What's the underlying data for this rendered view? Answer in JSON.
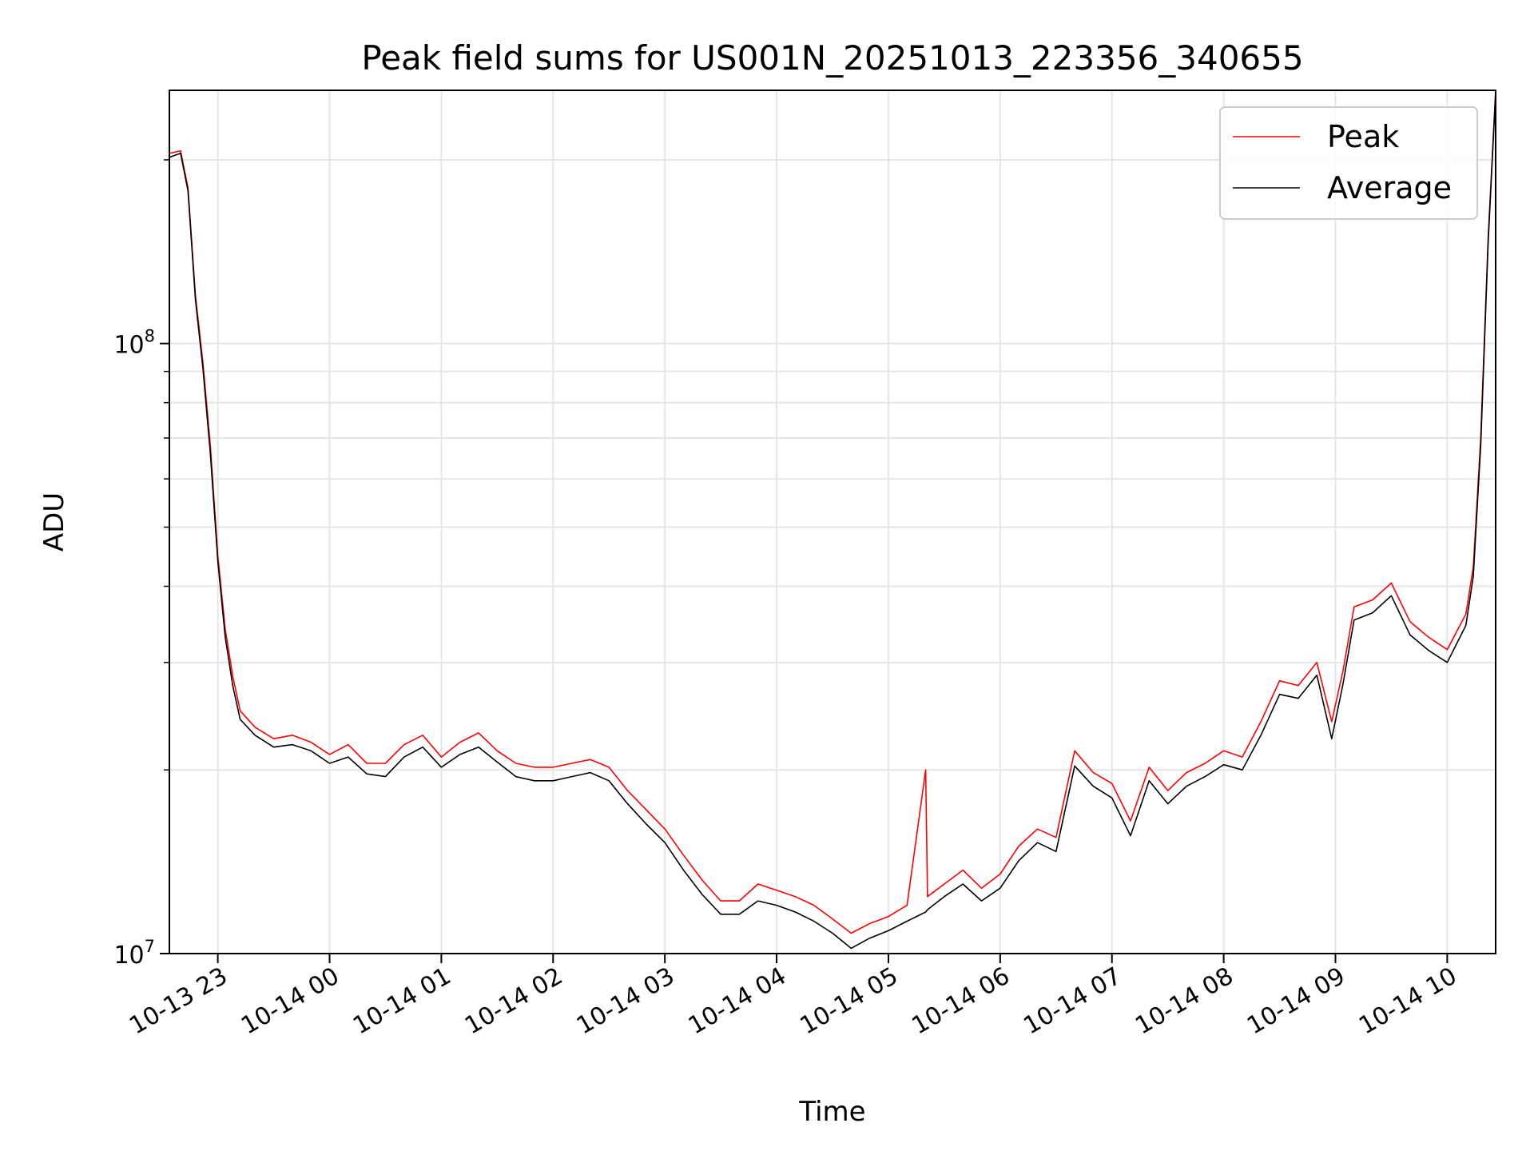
{
  "chart_data": {
    "type": "line",
    "title": "Peak field sums for US001N_20251013_223356_340655",
    "xlabel": "Time",
    "ylabel": "ADU",
    "yscale": "log",
    "ylim": [
      10000000.0,
      260000000.0
    ],
    "xlim": [
      "2025-10-13T22:34:00",
      "2025-10-14T10:26:00"
    ],
    "x_ticks": [
      "10-13 23",
      "10-14 00",
      "10-14 01",
      "10-14 02",
      "10-14 03",
      "10-14 04",
      "10-14 05",
      "10-14 06",
      "10-14 07",
      "10-14 08",
      "10-14 09",
      "10-14 10"
    ],
    "y_major_ticks": [
      {
        "value": 10000000.0,
        "base": "10",
        "exp": "7"
      },
      {
        "value": 100000000.0,
        "base": "10",
        "exp": "8"
      }
    ],
    "grid": true,
    "legend_position": "upper-right",
    "series": [
      {
        "name": "Peak",
        "color": "#ff0000",
        "points": [
          [
            "2025-10-13T22:34:00",
            205000000.0
          ],
          [
            "2025-10-13T22:40:00",
            207000000.0
          ],
          [
            "2025-10-13T22:44:00",
            180000000.0
          ],
          [
            "2025-10-13T22:48:00",
            120000000.0
          ],
          [
            "2025-10-13T22:52:00",
            93000000.0
          ],
          [
            "2025-10-13T22:56:00",
            68000000.0
          ],
          [
            "2025-10-13T23:00:00",
            45000000.0
          ],
          [
            "2025-10-13T23:04:00",
            34000000.0
          ],
          [
            "2025-10-13T23:08:00",
            28500000.0
          ],
          [
            "2025-10-13T23:12:00",
            25000000.0
          ],
          [
            "2025-10-13T23:20:00",
            23500000.0
          ],
          [
            "2025-10-13T23:30:00",
            22500000.0
          ],
          [
            "2025-10-13T23:40:00",
            22800000.0
          ],
          [
            "2025-10-13T23:50:00",
            22200000.0
          ],
          [
            "2025-10-14T00:00:00",
            21200000.0
          ],
          [
            "2025-10-14T00:10:00",
            22000000.0
          ],
          [
            "2025-10-14T00:20:00",
            20500000.0
          ],
          [
            "2025-10-14T00:30:00",
            20500000.0
          ],
          [
            "2025-10-14T00:40:00",
            22000000.0
          ],
          [
            "2025-10-14T00:50:00",
            22800000.0
          ],
          [
            "2025-10-14T01:00:00",
            21000000.0
          ],
          [
            "2025-10-14T01:10:00",
            22200000.0
          ],
          [
            "2025-10-14T01:20:00",
            23000000.0
          ],
          [
            "2025-10-14T01:30:00",
            21500000.0
          ],
          [
            "2025-10-14T01:40:00",
            20500000.0
          ],
          [
            "2025-10-14T01:50:00",
            20200000.0
          ],
          [
            "2025-10-14T02:00:00",
            20200000.0
          ],
          [
            "2025-10-14T02:10:00",
            20500000.0
          ],
          [
            "2025-10-14T02:20:00",
            20800000.0
          ],
          [
            "2025-10-14T02:30:00",
            20200000.0
          ],
          [
            "2025-10-14T02:40:00",
            18500000.0
          ],
          [
            "2025-10-14T02:50:00",
            17200000.0
          ],
          [
            "2025-10-14T03:00:00",
            16000000.0
          ],
          [
            "2025-10-14T03:10:00",
            14500000.0
          ],
          [
            "2025-10-14T03:20:00",
            13200000.0
          ],
          [
            "2025-10-14T03:30:00",
            12200000.0
          ],
          [
            "2025-10-14T03:40:00",
            12200000.0
          ],
          [
            "2025-10-14T03:50:00",
            13000000.0
          ],
          [
            "2025-10-14T04:00:00",
            12700000.0
          ],
          [
            "2025-10-14T04:10:00",
            12400000.0
          ],
          [
            "2025-10-14T04:20:00",
            12000000.0
          ],
          [
            "2025-10-14T04:30:00",
            11400000.0
          ],
          [
            "2025-10-14T04:40:00",
            10800000.0
          ],
          [
            "2025-10-14T04:50:00",
            11200000.0
          ],
          [
            "2025-10-14T05:00:00",
            11500000.0
          ],
          [
            "2025-10-14T05:10:00",
            12000000.0
          ],
          [
            "2025-10-14T05:20:00",
            20000000.0
          ],
          [
            "2025-10-14T05:21:00",
            12400000.0
          ],
          [
            "2025-10-14T05:30:00",
            13000000.0
          ],
          [
            "2025-10-14T05:40:00",
            13700000.0
          ],
          [
            "2025-10-14T05:50:00",
            12800000.0
          ],
          [
            "2025-10-14T06:00:00",
            13500000.0
          ],
          [
            "2025-10-14T06:10:00",
            15000000.0
          ],
          [
            "2025-10-14T06:20:00",
            16000000.0
          ],
          [
            "2025-10-14T06:30:00",
            15500000.0
          ],
          [
            "2025-10-14T06:40:00",
            21500000.0
          ],
          [
            "2025-10-14T06:50:00",
            19800000.0
          ],
          [
            "2025-10-14T07:00:00",
            19000000.0
          ],
          [
            "2025-10-14T07:10:00",
            16500000.0
          ],
          [
            "2025-10-14T07:20:00",
            20200000.0
          ],
          [
            "2025-10-14T07:30:00",
            18500000.0
          ],
          [
            "2025-10-14T07:40:00",
            19800000.0
          ],
          [
            "2025-10-14T07:50:00",
            20500000.0
          ],
          [
            "2025-10-14T08:00:00",
            21500000.0
          ],
          [
            "2025-10-14T08:10:00",
            21000000.0
          ],
          [
            "2025-10-14T08:20:00",
            24000000.0
          ],
          [
            "2025-10-14T08:30:00",
            28000000.0
          ],
          [
            "2025-10-14T08:40:00",
            27500000.0
          ],
          [
            "2025-10-14T08:50:00",
            30000000.0
          ],
          [
            "2025-10-14T08:58:00",
            24000000.0
          ],
          [
            "2025-10-14T09:04:00",
            29000000.0
          ],
          [
            "2025-10-14T09:10:00",
            37000000.0
          ],
          [
            "2025-10-14T09:20:00",
            38000000.0
          ],
          [
            "2025-10-14T09:30:00",
            40500000.0
          ],
          [
            "2025-10-14T09:40:00",
            35000000.0
          ],
          [
            "2025-10-14T09:50:00",
            33000000.0
          ],
          [
            "2025-10-14T10:00:00",
            31500000.0
          ],
          [
            "2025-10-14T10:10:00",
            36000000.0
          ],
          [
            "2025-10-14T10:14:00",
            43000000.0
          ],
          [
            "2025-10-14T10:18:00",
            70000000.0
          ],
          [
            "2025-10-14T10:22:00",
            150000000.0
          ],
          [
            "2025-10-14T10:26:00",
            260000000.0
          ]
        ]
      },
      {
        "name": "Average",
        "color": "#000000",
        "points": [
          [
            "2025-10-13T22:34:00",
            202000000.0
          ],
          [
            "2025-10-13T22:40:00",
            205000000.0
          ],
          [
            "2025-10-13T22:44:00",
            178000000.0
          ],
          [
            "2025-10-13T22:48:00",
            118000000.0
          ],
          [
            "2025-10-13T22:52:00",
            91000000.0
          ],
          [
            "2025-10-13T22:56:00",
            66000000.0
          ],
          [
            "2025-10-13T23:00:00",
            44000000.0
          ],
          [
            "2025-10-13T23:04:00",
            33000000.0
          ],
          [
            "2025-10-13T23:08:00",
            27500000.0
          ],
          [
            "2025-10-13T23:12:00",
            24200000.0
          ],
          [
            "2025-10-13T23:20:00",
            22800000.0
          ],
          [
            "2025-10-13T23:30:00",
            21800000.0
          ],
          [
            "2025-10-13T23:40:00",
            22000000.0
          ],
          [
            "2025-10-13T23:50:00",
            21500000.0
          ],
          [
            "2025-10-14T00:00:00",
            20500000.0
          ],
          [
            "2025-10-14T00:10:00",
            21000000.0
          ],
          [
            "2025-10-14T00:20:00",
            19700000.0
          ],
          [
            "2025-10-14T00:30:00",
            19500000.0
          ],
          [
            "2025-10-14T00:40:00",
            21000000.0
          ],
          [
            "2025-10-14T00:50:00",
            21800000.0
          ],
          [
            "2025-10-14T01:00:00",
            20200000.0
          ],
          [
            "2025-10-14T01:10:00",
            21200000.0
          ],
          [
            "2025-10-14T01:20:00",
            21800000.0
          ],
          [
            "2025-10-14T01:30:00",
            20600000.0
          ],
          [
            "2025-10-14T01:40:00",
            19500000.0
          ],
          [
            "2025-10-14T01:50:00",
            19200000.0
          ],
          [
            "2025-10-14T02:00:00",
            19200000.0
          ],
          [
            "2025-10-14T02:10:00",
            19500000.0
          ],
          [
            "2025-10-14T02:20:00",
            19800000.0
          ],
          [
            "2025-10-14T02:30:00",
            19200000.0
          ],
          [
            "2025-10-14T02:40:00",
            17600000.0
          ],
          [
            "2025-10-14T02:50:00",
            16300000.0
          ],
          [
            "2025-10-14T03:00:00",
            15200000.0
          ],
          [
            "2025-10-14T03:10:00",
            13700000.0
          ],
          [
            "2025-10-14T03:20:00",
            12500000.0
          ],
          [
            "2025-10-14T03:30:00",
            11600000.0
          ],
          [
            "2025-10-14T03:40:00",
            11600000.0
          ],
          [
            "2025-10-14T03:50:00",
            12200000.0
          ],
          [
            "2025-10-14T04:00:00",
            12000000.0
          ],
          [
            "2025-10-14T04:10:00",
            11700000.0
          ],
          [
            "2025-10-14T04:20:00",
            11300000.0
          ],
          [
            "2025-10-14T04:30:00",
            10800000.0
          ],
          [
            "2025-10-14T04:40:00",
            10200000.0
          ],
          [
            "2025-10-14T04:50:00",
            10600000.0
          ],
          [
            "2025-10-14T05:00:00",
            10900000.0
          ],
          [
            "2025-10-14T05:10:00",
            11300000.0
          ],
          [
            "2025-10-14T05:20:00",
            11700000.0
          ],
          [
            "2025-10-14T05:21:00",
            11800000.0
          ],
          [
            "2025-10-14T05:30:00",
            12400000.0
          ],
          [
            "2025-10-14T05:40:00",
            13000000.0
          ],
          [
            "2025-10-14T05:50:00",
            12200000.0
          ],
          [
            "2025-10-14T06:00:00",
            12800000.0
          ],
          [
            "2025-10-14T06:10:00",
            14200000.0
          ],
          [
            "2025-10-14T06:20:00",
            15200000.0
          ],
          [
            "2025-10-14T06:30:00",
            14700000.0
          ],
          [
            "2025-10-14T06:40:00",
            20300000.0
          ],
          [
            "2025-10-14T06:50:00",
            18800000.0
          ],
          [
            "2025-10-14T07:00:00",
            18000000.0
          ],
          [
            "2025-10-14T07:10:00",
            15600000.0
          ],
          [
            "2025-10-14T07:20:00",
            19200000.0
          ],
          [
            "2025-10-14T07:30:00",
            17600000.0
          ],
          [
            "2025-10-14T07:40:00",
            18800000.0
          ],
          [
            "2025-10-14T07:50:00",
            19500000.0
          ],
          [
            "2025-10-14T08:00:00",
            20400000.0
          ],
          [
            "2025-10-14T08:10:00",
            20000000.0
          ],
          [
            "2025-10-14T08:20:00",
            22800000.0
          ],
          [
            "2025-10-14T08:30:00",
            26600000.0
          ],
          [
            "2025-10-14T08:40:00",
            26200000.0
          ],
          [
            "2025-10-14T08:50:00",
            28600000.0
          ],
          [
            "2025-10-14T08:58:00",
            22500000.0
          ],
          [
            "2025-10-14T09:04:00",
            27600000.0
          ],
          [
            "2025-10-14T09:10:00",
            35200000.0
          ],
          [
            "2025-10-14T09:20:00",
            36200000.0
          ],
          [
            "2025-10-14T09:30:00",
            38600000.0
          ],
          [
            "2025-10-14T09:40:00",
            33300000.0
          ],
          [
            "2025-10-14T09:50:00",
            31400000.0
          ],
          [
            "2025-10-14T10:00:00",
            30000000.0
          ],
          [
            "2025-10-14T10:10:00",
            34500000.0
          ],
          [
            "2025-10-14T10:14:00",
            41500000.0
          ],
          [
            "2025-10-14T10:18:00",
            68000000.0
          ],
          [
            "2025-10-14T10:22:00",
            147000000.0
          ],
          [
            "2025-10-14T10:26:00",
            258000000.0
          ]
        ]
      }
    ]
  }
}
